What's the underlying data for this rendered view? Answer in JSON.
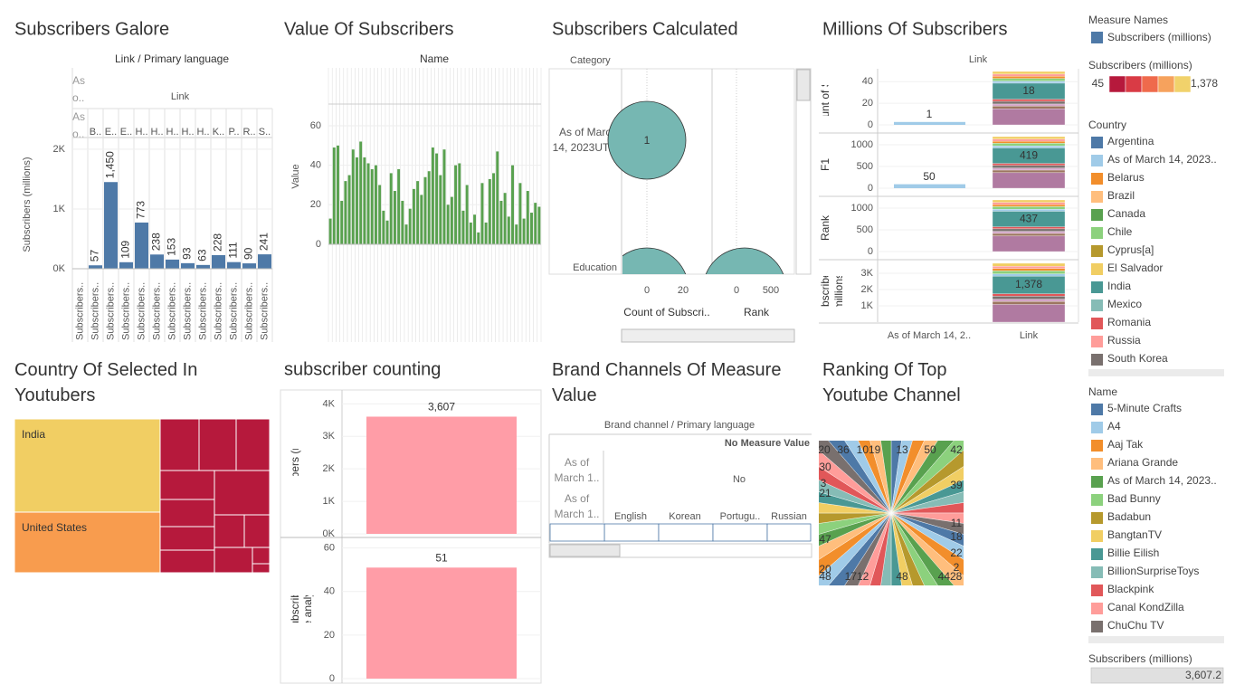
{
  "chart_data": [
    {
      "type": "bar",
      "title": "Subscribers Galore",
      "header": "Link / Primary language",
      "row_headers": [
        "As o..",
        "Link",
        "As o.."
      ],
      "y_label": "Subscribers (millions)",
      "categories": [
        "B..",
        "E..",
        "E..",
        "H..",
        "H..",
        "H..",
        "H..",
        "H..",
        "K..",
        "P..",
        "R..",
        "S.."
      ],
      "values": [
        57,
        1450,
        109,
        773,
        238,
        153,
        93,
        63,
        228,
        111,
        90,
        241
      ],
      "value_labels": [
        "57",
        "1,450",
        "109",
        "773",
        "238",
        "153",
        "93",
        "63",
        "228",
        "111",
        "90",
        "241"
      ],
      "color": "#4e79a7",
      "ylim": [
        0,
        2150
      ],
      "yticks": [
        {
          "value": 0,
          "label": "0K"
        },
        {
          "value": 1000,
          "label": "1K"
        },
        {
          "value": 2000,
          "label": "2K"
        }
      ],
      "footer_labels": [
        "Subscribers..",
        "Subscribers..",
        "Subscribers..",
        "Subscribers..",
        "Subscribers..",
        "Subscribers..",
        "Subscribers..",
        "Subscribers..",
        "Subscribers..",
        "Subscribers..",
        "Subscribers..",
        "Subscribers..",
        "Subscribers.."
      ]
    },
    {
      "type": "bar",
      "title": "Value Of Subscribers",
      "header": "Name",
      "y_label": "Value",
      "color": "#59a14f",
      "values": [
        13,
        49,
        50,
        22,
        32,
        35,
        48,
        44,
        52,
        44,
        41,
        38,
        40,
        30,
        17,
        12,
        36,
        27,
        38,
        22,
        10,
        18,
        28,
        32,
        25,
        34,
        37,
        49,
        46,
        35,
        48,
        20,
        24,
        40,
        41,
        17,
        30,
        11,
        15,
        6,
        31,
        11,
        33,
        36,
        47,
        22,
        26,
        14,
        40,
        10,
        31,
        13,
        27,
        16,
        21,
        19
      ],
      "ylim": [
        -4.6,
        71
      ],
      "yticks": [
        0,
        20,
        40,
        60
      ]
    },
    {
      "type": "bar",
      "title": "subscriber counting",
      "color": "#ff9da7",
      "panels": [
        {
          "y_label": "Subscribers (millions)",
          "values": [
            3607
          ],
          "value_labels": [
            "3,607"
          ],
          "ylim": [
            0,
            4400
          ],
          "yticks": [
            {
              "value": 0,
              "label": "0K"
            },
            {
              "value": 1000,
              "label": "1K"
            },
            {
              "value": 2000,
              "label": "2K"
            },
            {
              "value": 3000,
              "label": "3K"
            },
            {
              "value": 4000,
              "label": "4K"
            }
          ]
        },
        {
          "y_label": "Count of Subscribers galore-youtube analysis.csv",
          "values": [
            51
          ],
          "ylim": [
            0,
            64
          ],
          "yticks": [
            0,
            20,
            40,
            60
          ]
        }
      ]
    }
  ],
  "calculated": {
    "title": "Subscribers Calculated",
    "header": "Category",
    "rows": [
      "As of March 14, 2023UTC",
      "Education"
    ],
    "value": 1,
    "axes": [
      {
        "label": "Count of Subscri..",
        "ticks": [
          0,
          20
        ]
      },
      {
        "label": "Rank",
        "ticks": [
          0,
          500
        ]
      }
    ],
    "color": "#76b7b2"
  },
  "millions": {
    "title": "Millions Of Subscribers",
    "header": "Link",
    "columns": [
      "As of March 14, 2..",
      "Link"
    ],
    "rows": [
      {
        "label": "Count of Subscriber..",
        "ylim": [
          0,
          52
        ],
        "yticks": [
          0,
          20,
          40
        ],
        "values": [
          1,
          18
        ]
      },
      {
        "label": "F1",
        "ylim": [
          0,
          1250
        ],
        "yticks": [
          0,
          500,
          1000
        ],
        "values": [
          50,
          419
        ]
      },
      {
        "label": "Rank",
        "ylim": [
          0,
          1250
        ],
        "yticks": [
          0,
          500,
          1000
        ],
        "values": [
          437
        ]
      },
      {
        "label": "Subscribers (millions)",
        "ylim": [
          0,
          3780
        ],
        "yticks": [
          {
            "value": 1000,
            "label": "1K"
          },
          {
            "value": 2000,
            "label": "2K"
          },
          {
            "value": 3000,
            "label": "3K"
          }
        ],
        "values": [
          1378
        ],
        "value_labels": [
          "1,378"
        ]
      }
    ]
  },
  "treemap": {
    "title": "Country Of Selected In Youtubers",
    "items": [
      {
        "name": "India",
        "color": "#f1ce63"
      },
      {
        "name": "United States",
        "color": "#f89c4e"
      }
    ],
    "other_color": "#b6193c"
  },
  "brand": {
    "title": "Brand Channels Of Measure Value",
    "header": "Brand channel / Primary language",
    "measure": "No Measure Value",
    "group": "No",
    "rows": [
      "As of March 1..",
      "As of March 1.."
    ],
    "columns": [
      "English",
      "Korean",
      "Portugu..",
      "Russian"
    ]
  },
  "pie": {
    "title": "Ranking Of Top Youtube Channel",
    "labels": [
      20,
      36,
      1019,
      13,
      50,
      42,
      30,
      39,
      3,
      21,
      11,
      18,
      47,
      22,
      20,
      2,
      48,
      1712,
      48,
      4428
    ]
  },
  "legends": {
    "measure_names": {
      "title": "Measure Names",
      "items": [
        {
          "name": "Subscribers (millions)",
          "color": "#4e79a7"
        }
      ]
    },
    "color_range": {
      "title": "Subscribers (millions)",
      "min": 45,
      "max": {
        "value": 1378,
        "label": "1,378"
      },
      "colors": [
        "#b6193c",
        "#d93b45",
        "#ef6a4c",
        "#f6a25d",
        "#f1d26b"
      ]
    },
    "country": {
      "title": "Country",
      "items": [
        {
          "name": "Argentina",
          "color": "#4e79a7"
        },
        {
          "name": "As of March 14, 2023..",
          "color": "#a0cbe8"
        },
        {
          "name": "Belarus",
          "color": "#f28e2b"
        },
        {
          "name": "Brazil",
          "color": "#ffbe7d"
        },
        {
          "name": "Canada",
          "color": "#59a14f"
        },
        {
          "name": "Chile",
          "color": "#8cd17d"
        },
        {
          "name": "Cyprus[a]",
          "color": "#b6992d"
        },
        {
          "name": "El Salvador",
          "color": "#f1ce63"
        },
        {
          "name": "India",
          "color": "#499894"
        },
        {
          "name": "Mexico",
          "color": "#86bcb6"
        },
        {
          "name": "Romania",
          "color": "#e15759"
        },
        {
          "name": "Russia",
          "color": "#ff9d9a"
        },
        {
          "name": "South Korea",
          "color": "#79706e"
        }
      ]
    },
    "name": {
      "title": "Name",
      "items": [
        {
          "name": "5-Minute Crafts",
          "color": "#4e79a7"
        },
        {
          "name": "A4",
          "color": "#a0cbe8"
        },
        {
          "name": "Aaj Tak",
          "color": "#f28e2b"
        },
        {
          "name": "Ariana Grande",
          "color": "#ffbe7d"
        },
        {
          "name": "As of March 14, 2023..",
          "color": "#59a14f"
        },
        {
          "name": "Bad Bunny",
          "color": "#8cd17d"
        },
        {
          "name": "Badabun",
          "color": "#b6992d"
        },
        {
          "name": "BangtanTV",
          "color": "#f1ce63"
        },
        {
          "name": "Billie Eilish",
          "color": "#499894"
        },
        {
          "name": "BillionSurpriseToys",
          "color": "#86bcb6"
        },
        {
          "name": "Blackpink",
          "color": "#e15759"
        },
        {
          "name": "Canal KondZilla",
          "color": "#ff9d9a"
        },
        {
          "name": "ChuChu TV",
          "color": "#79706e"
        }
      ]
    },
    "total": {
      "title": "Subscribers (millions)",
      "value": {
        "value": 3607.2,
        "label": "3,607.2"
      }
    }
  }
}
